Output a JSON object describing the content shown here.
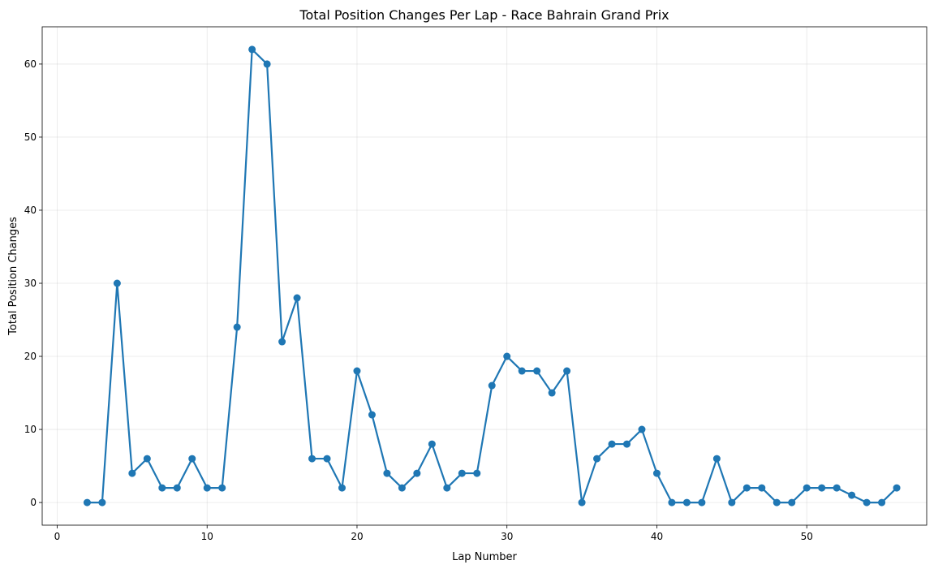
{
  "chart_data": {
    "type": "line",
    "title": "Total Position Changes Per Lap - Race Bahrain Grand Prix",
    "xlabel": "Lap Number",
    "ylabel": "Total Position Changes",
    "xlim": [
      -1,
      58
    ],
    "ylim": [
      -3.1,
      65.1
    ],
    "xticks": [
      0,
      10,
      20,
      30,
      40,
      50
    ],
    "yticks": [
      0,
      10,
      20,
      30,
      40,
      50,
      60
    ],
    "grid": true,
    "series": [
      {
        "color": "#1f77b4",
        "marker": "circle",
        "x": [
          2,
          3,
          4,
          5,
          6,
          7,
          8,
          9,
          10,
          11,
          12,
          13,
          14,
          15,
          16,
          17,
          18,
          19,
          20,
          21,
          22,
          23,
          24,
          25,
          26,
          27,
          28,
          29,
          30,
          31,
          32,
          33,
          34,
          35,
          36,
          37,
          38,
          39,
          40,
          41,
          42,
          43,
          44,
          45,
          46,
          47,
          48,
          49,
          50,
          51,
          52,
          53,
          54,
          55,
          56
        ],
        "y": [
          0,
          0,
          30,
          4,
          6,
          2,
          2,
          6,
          2,
          2,
          24,
          62,
          60,
          22,
          28,
          6,
          6,
          2,
          18,
          12,
          4,
          2,
          4,
          8,
          2,
          4,
          4,
          16,
          20,
          18,
          18,
          15,
          18,
          0,
          6,
          8,
          8,
          10,
          4,
          0,
          0,
          0,
          6,
          0,
          2,
          2,
          0,
          0,
          2,
          2,
          2,
          1,
          0,
          0,
          2
        ]
      }
    ]
  }
}
